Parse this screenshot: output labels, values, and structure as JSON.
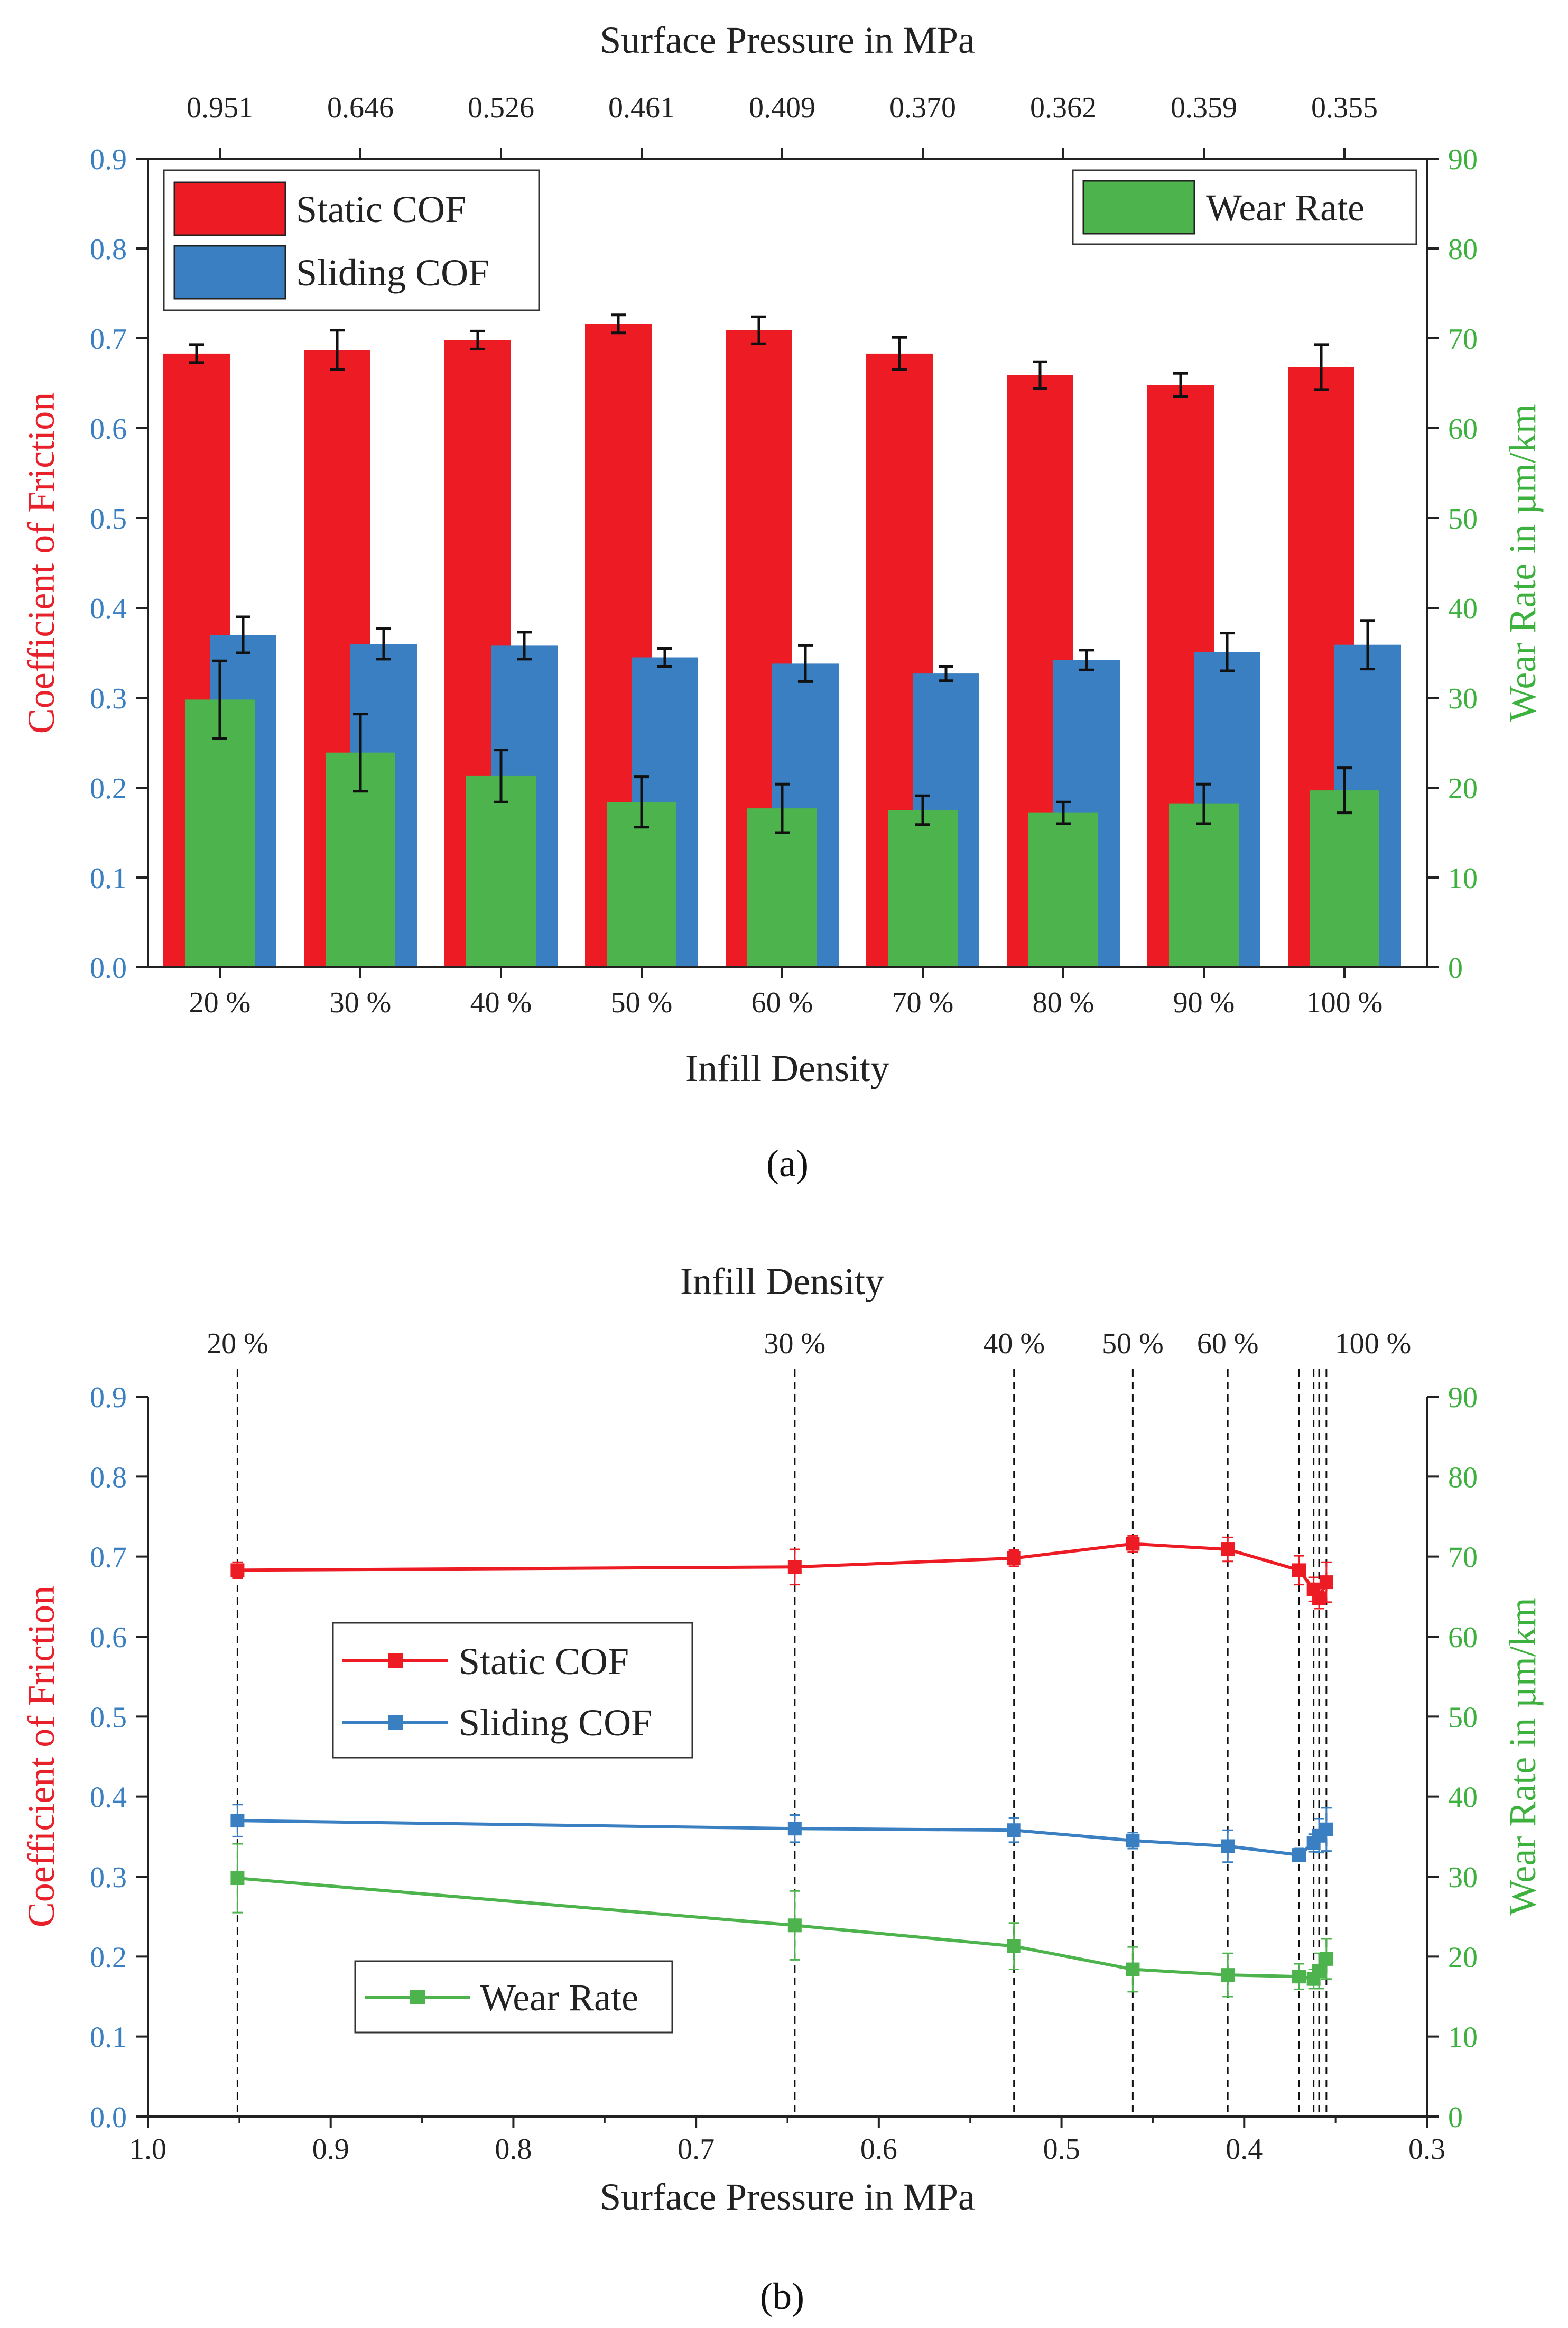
{
  "colors": {
    "static": "#ED1C24",
    "sliding": "#3A7FC1",
    "wear": "#4DB34D",
    "left_axis": "#3A7FC1",
    "right_axis": "#3DB13D",
    "left_title": "#E8202A"
  },
  "chart_data": [
    {
      "type": "bar",
      "panel_label": "(a)",
      "top_title": "Surface Pressure in MPa",
      "top_ticks": [
        "0.951",
        "0.646",
        "0.526",
        "0.461",
        "0.409",
        "0.370",
        "0.362",
        "0.359",
        "0.355"
      ],
      "categories": [
        "20 %",
        "30 %",
        "40 %",
        "50 %",
        "60 %",
        "70 %",
        "80 %",
        "90 %",
        "100 %"
      ],
      "xlabel": "Infill Density",
      "ylabel_left": "Coefficient of Friction",
      "ylabel_right": "Wear Rate in µm/km",
      "ylim_left": [
        0,
        0.9
      ],
      "ylim_right": [
        0,
        90
      ],
      "yticks_left": [
        "0.0",
        "0.1",
        "0.2",
        "0.3",
        "0.4",
        "0.5",
        "0.6",
        "0.7",
        "0.8",
        "0.9"
      ],
      "yticks_right": [
        "0",
        "10",
        "20",
        "30",
        "40",
        "50",
        "60",
        "70",
        "80",
        "90"
      ],
      "series": [
        {
          "name": "Static COF",
          "axis": "left",
          "values": [
            0.683,
            0.687,
            0.698,
            0.716,
            0.709,
            0.683,
            0.659,
            0.648,
            0.668
          ],
          "errors": [
            0.01,
            0.022,
            0.01,
            0.01,
            0.015,
            0.018,
            0.015,
            0.013,
            0.025
          ]
        },
        {
          "name": "Sliding COF",
          "axis": "left",
          "values": [
            0.37,
            0.36,
            0.358,
            0.345,
            0.338,
            0.327,
            0.342,
            0.351,
            0.359
          ],
          "errors": [
            0.02,
            0.017,
            0.015,
            0.01,
            0.02,
            0.008,
            0.011,
            0.021,
            0.027
          ]
        },
        {
          "name": "Wear Rate",
          "axis": "right",
          "values": [
            29.8,
            23.9,
            21.3,
            18.4,
            17.7,
            17.5,
            17.2,
            18.2,
            19.7
          ],
          "errors": [
            4.3,
            4.3,
            2.9,
            2.8,
            2.7,
            1.6,
            1.2,
            2.2,
            2.5
          ]
        }
      ],
      "legend": [
        "Static COF",
        "Sliding COF",
        "Wear Rate"
      ]
    },
    {
      "type": "line",
      "panel_label": "(b)",
      "top_title": "Infill Density",
      "top_labels": [
        "20 %",
        "30 %",
        "40 %",
        "50 %",
        "60 %",
        "100 %"
      ],
      "xlabel": "Surface Pressure in MPa",
      "ylabel_left": "Coefficient of Friction",
      "ylabel_right": "Wear Rate in µm/km",
      "xlim": [
        1.0,
        0.3
      ],
      "xticks": [
        "1.0",
        "0.9",
        "0.8",
        "0.7",
        "0.6",
        "0.5",
        "0.4",
        "0.3"
      ],
      "ylim_left": [
        0,
        0.9
      ],
      "ylim_right": [
        0,
        90
      ],
      "yticks_left": [
        "0.0",
        "0.1",
        "0.2",
        "0.3",
        "0.4",
        "0.5",
        "0.6",
        "0.7",
        "0.8",
        "0.9"
      ],
      "yticks_right": [
        "0",
        "10",
        "20",
        "30",
        "40",
        "50",
        "60",
        "70",
        "80",
        "90"
      ],
      "x": [
        0.951,
        0.646,
        0.526,
        0.461,
        0.409,
        0.37,
        0.362,
        0.359,
        0.355
      ],
      "series": [
        {
          "name": "Static COF",
          "axis": "left",
          "values": [
            0.683,
            0.687,
            0.698,
            0.716,
            0.709,
            0.683,
            0.659,
            0.648,
            0.668
          ],
          "errors": [
            0.01,
            0.022,
            0.01,
            0.01,
            0.015,
            0.018,
            0.015,
            0.013,
            0.025
          ]
        },
        {
          "name": "Sliding COF",
          "axis": "left",
          "values": [
            0.37,
            0.36,
            0.358,
            0.345,
            0.338,
            0.327,
            0.342,
            0.351,
            0.359
          ],
          "errors": [
            0.02,
            0.017,
            0.015,
            0.01,
            0.02,
            0.008,
            0.011,
            0.021,
            0.027
          ]
        },
        {
          "name": "Wear Rate",
          "axis": "right",
          "values": [
            29.8,
            23.9,
            21.3,
            18.4,
            17.7,
            17.5,
            17.2,
            18.2,
            19.7
          ],
          "errors": [
            4.3,
            4.3,
            2.9,
            2.8,
            2.7,
            1.6,
            1.2,
            2.2,
            2.5
          ]
        }
      ],
      "legend": [
        "Static COF",
        "Sliding COF",
        "Wear Rate"
      ]
    }
  ]
}
